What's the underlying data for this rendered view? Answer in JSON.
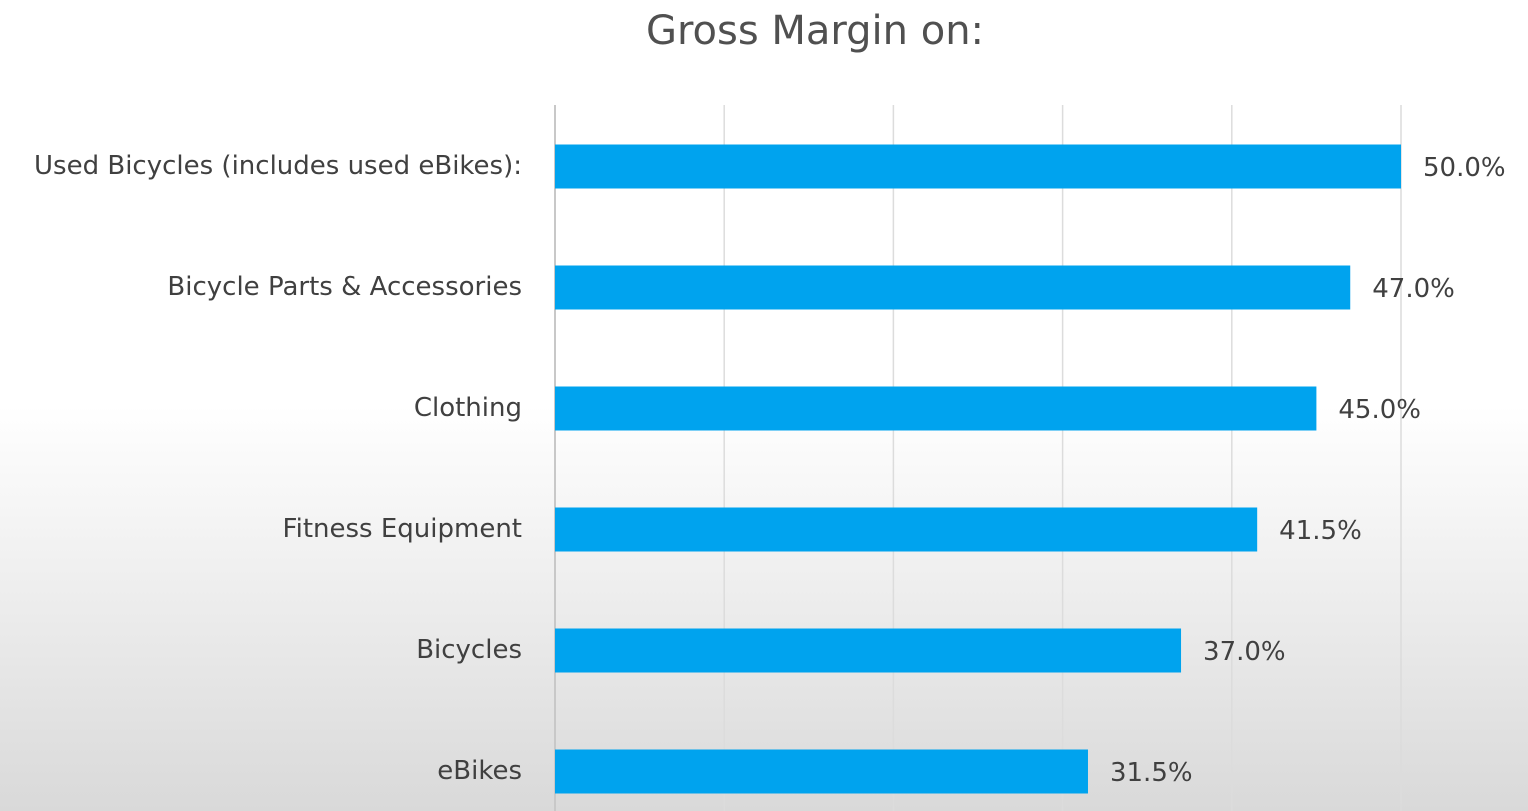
{
  "chart_data": {
    "type": "bar",
    "orientation": "horizontal",
    "title": "Gross Margin on:",
    "categories": [
      "Used Bicycles (includes used eBikes):",
      "Bicycle Parts & Accessories",
      "Clothing",
      "Fitness Equipment",
      "Bicycles",
      "eBikes"
    ],
    "values": [
      50.0,
      47.0,
      45.0,
      41.5,
      37.0,
      31.5
    ],
    "value_labels": [
      "50.0%",
      "47.0%",
      "45.0%",
      "41.5%",
      "37.0%",
      "31.5%"
    ],
    "color": "#00a3ee",
    "xlim": [
      0,
      50
    ],
    "xticks": [
      0,
      10,
      20,
      30,
      40,
      50
    ],
    "grid": true
  }
}
